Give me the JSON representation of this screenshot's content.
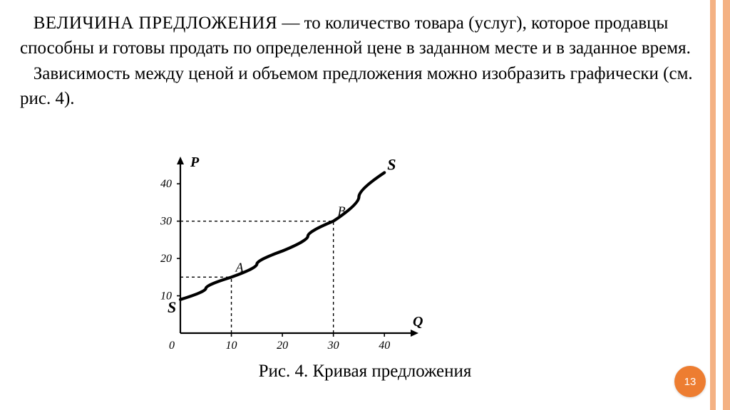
{
  "text": {
    "para1_html": "&nbsp;&nbsp;&nbsp;<span class=\"term-title\">ВЕЛИЧИНА ПРЕДЛОЖЕНИЯ</span> — то количество товара (услуг), которое продавцы способны и готовы продать по определенной цене в заданном месте и в заданное время.",
    "para2_html": "&nbsp;&nbsp;&nbsp;Зависимость между ценой и объемом предложения можно изобразить графически (см. рис. 4).",
    "caption": "Рис. 4. Кривая предложения",
    "page_number": "13"
  },
  "chart": {
    "type": "line",
    "background_color": "#ffffff",
    "axis_color": "#000000",
    "curve_color": "#000000",
    "curve_width": 4.2,
    "dash_pattern": "4 4",
    "x_axis_label": "Q",
    "y_axis_label": "P",
    "x_ticks": [
      0,
      10,
      20,
      30,
      40
    ],
    "y_ticks": [
      10,
      20,
      30,
      40
    ],
    "xlim": [
      0,
      45
    ],
    "ylim": [
      0,
      45
    ],
    "series_label_start": "S",
    "series_label_end": "S",
    "curve_points": [
      {
        "x": 0,
        "y": 9
      },
      {
        "x": 10,
        "y": 15
      },
      {
        "x": 20,
        "y": 22
      },
      {
        "x": 30,
        "y": 30
      },
      {
        "x": 40,
        "y": 43
      }
    ],
    "marked_points": [
      {
        "label": "A",
        "x": 10,
        "y": 15
      },
      {
        "label": "B",
        "x": 30,
        "y": 30
      }
    ],
    "label_font_size": 16,
    "axis_label_font_size": 20
  },
  "decor": {
    "stripe_color": "#f4b183",
    "badge_bg": "#ed7d31",
    "badge_fg": "#ffffff"
  }
}
